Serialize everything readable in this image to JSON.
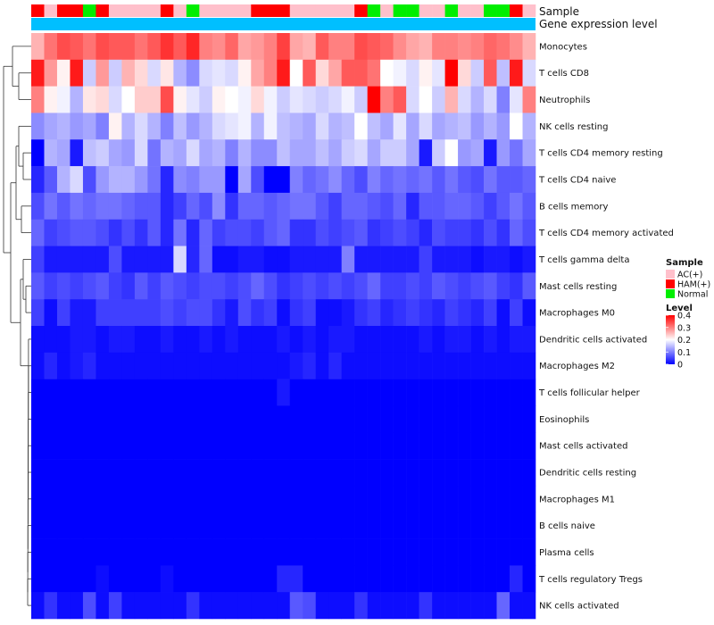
{
  "chart_data": {
    "type": "heatmap",
    "annotation_labels": {
      "sample": "Sample",
      "gene_expression": "Gene expression level"
    },
    "sample_groups": [
      "HAM(+)",
      "AC(+)",
      "HAM(+)",
      "HAM(+)",
      "Normal",
      "HAM(+)",
      "AC(+)",
      "AC(+)",
      "AC(+)",
      "AC(+)",
      "HAM(+)",
      "AC(+)",
      "Normal",
      "AC(+)",
      "AC(+)",
      "AC(+)",
      "AC(+)",
      "HAM(+)",
      "HAM(+)",
      "HAM(+)",
      "AC(+)",
      "AC(+)",
      "AC(+)",
      "AC(+)",
      "AC(+)",
      "HAM(+)",
      "Normal",
      "AC(+)",
      "Normal",
      "Normal",
      "AC(+)",
      "AC(+)",
      "Normal",
      "AC(+)",
      "AC(+)",
      "Normal",
      "Normal",
      "HAM(+)",
      "AC(+)"
    ],
    "rows": [
      "Monocytes",
      "T cells CD8",
      "Neutrophils",
      "NK cells resting",
      "T cells CD4 memory resting",
      "T cells CD4 naive",
      "B cells memory",
      "T cells CD4 memory activated",
      "T cells gamma delta",
      "Mast cells resting",
      "Macrophages M0",
      "Dendritic cells activated",
      "Macrophages M2",
      "T cells follicular helper",
      "Eosinophils",
      "Mast cells activated",
      "Dendritic cells resting",
      "Macrophages M1",
      "B cells naive",
      "Plasma cells",
      "T cells regulatory  Tregs",
      "NK cells activated"
    ],
    "color_scale": {
      "min": 0,
      "mid": 0.2,
      "max": 0.4,
      "low": "#0000ff",
      "mid_color": "#ffffff",
      "high": "#ff0000"
    },
    "values": [
      [
        0.26,
        0.31,
        0.34,
        0.33,
        0.31,
        0.34,
        0.33,
        0.33,
        0.31,
        0.33,
        0.36,
        0.33,
        0.37,
        0.3,
        0.29,
        0.32,
        0.27,
        0.28,
        0.3,
        0.35,
        0.27,
        0.26,
        0.33,
        0.3,
        0.3,
        0.34,
        0.33,
        0.32,
        0.29,
        0.27,
        0.26,
        0.3,
        0.3,
        0.29,
        0.3,
        0.32,
        0.31,
        0.29,
        0.26
      ],
      [
        0.38,
        0.28,
        0.21,
        0.38,
        0.16,
        0.28,
        0.16,
        0.26,
        0.23,
        0.17,
        0.22,
        0.14,
        0.11,
        0.17,
        0.18,
        0.17,
        0.21,
        0.27,
        0.3,
        0.38,
        0.2,
        0.33,
        0.23,
        0.27,
        0.33,
        0.33,
        0.31,
        0.2,
        0.19,
        0.17,
        0.21,
        0.18,
        0.4,
        0.23,
        0.16,
        0.33,
        0.15,
        0.38,
        0.17
      ],
      [
        0.3,
        0.21,
        0.19,
        0.14,
        0.22,
        0.23,
        0.17,
        0.2,
        0.24,
        0.24,
        0.34,
        0.21,
        0.18,
        0.16,
        0.21,
        0.2,
        0.19,
        0.23,
        0.19,
        0.16,
        0.18,
        0.17,
        0.16,
        0.17,
        0.19,
        0.16,
        0.4,
        0.3,
        0.33,
        0.17,
        0.2,
        0.16,
        0.26,
        0.17,
        0.14,
        0.17,
        0.1,
        0.18,
        0.3
      ],
      [
        0.11,
        0.13,
        0.14,
        0.12,
        0.13,
        0.1,
        0.21,
        0.14,
        0.17,
        0.14,
        0.1,
        0.15,
        0.12,
        0.14,
        0.17,
        0.18,
        0.19,
        0.14,
        0.19,
        0.15,
        0.14,
        0.13,
        0.17,
        0.14,
        0.15,
        0.2,
        0.15,
        0.13,
        0.18,
        0.13,
        0.17,
        0.13,
        0.14,
        0.15,
        0.12,
        0.14,
        0.12,
        0.2,
        0.14
      ],
      [
        0.0,
        0.14,
        0.13,
        0.02,
        0.15,
        0.16,
        0.13,
        0.12,
        0.17,
        0.09,
        0.14,
        0.13,
        0.17,
        0.13,
        0.14,
        0.1,
        0.14,
        0.11,
        0.11,
        0.15,
        0.13,
        0.13,
        0.15,
        0.13,
        0.16,
        0.17,
        0.13,
        0.16,
        0.16,
        0.13,
        0.02,
        0.16,
        0.2,
        0.12,
        0.13,
        0.02,
        0.12,
        0.09,
        0.13
      ],
      [
        0.03,
        0.07,
        0.14,
        0.17,
        0.06,
        0.12,
        0.14,
        0.14,
        0.12,
        0.09,
        0.03,
        0.11,
        0.1,
        0.12,
        0.12,
        0.0,
        0.13,
        0.06,
        0.0,
        0.0,
        0.1,
        0.08,
        0.09,
        0.11,
        0.08,
        0.06,
        0.1,
        0.08,
        0.09,
        0.08,
        0.09,
        0.07,
        0.09,
        0.07,
        0.06,
        0.09,
        0.07,
        0.07,
        0.08
      ],
      [
        0.06,
        0.09,
        0.07,
        0.09,
        0.08,
        0.09,
        0.09,
        0.08,
        0.07,
        0.07,
        0.03,
        0.05,
        0.08,
        0.06,
        0.11,
        0.04,
        0.08,
        0.08,
        0.07,
        0.08,
        0.09,
        0.09,
        0.07,
        0.05,
        0.08,
        0.08,
        0.07,
        0.06,
        0.08,
        0.03,
        0.07,
        0.07,
        0.08,
        0.08,
        0.07,
        0.05,
        0.07,
        0.09,
        0.07
      ],
      [
        0.08,
        0.05,
        0.06,
        0.07,
        0.07,
        0.06,
        0.04,
        0.06,
        0.04,
        0.07,
        0.03,
        0.09,
        0.03,
        0.08,
        0.05,
        0.06,
        0.06,
        0.05,
        0.07,
        0.08,
        0.04,
        0.04,
        0.06,
        0.05,
        0.06,
        0.07,
        0.04,
        0.05,
        0.06,
        0.05,
        0.03,
        0.06,
        0.05,
        0.05,
        0.04,
        0.06,
        0.04,
        0.08,
        0.06
      ],
      [
        0.05,
        0.02,
        0.02,
        0.02,
        0.02,
        0.02,
        0.06,
        0.02,
        0.02,
        0.02,
        0.02,
        0.17,
        0.03,
        0.08,
        0.01,
        0.01,
        0.02,
        0.02,
        0.01,
        0.01,
        0.02,
        0.02,
        0.02,
        0.02,
        0.1,
        0.02,
        0.02,
        0.02,
        0.02,
        0.02,
        0.05,
        0.02,
        0.02,
        0.02,
        0.01,
        0.02,
        0.02,
        0.01,
        0.02
      ],
      [
        0.07,
        0.05,
        0.06,
        0.05,
        0.06,
        0.07,
        0.05,
        0.04,
        0.07,
        0.05,
        0.07,
        0.06,
        0.05,
        0.06,
        0.06,
        0.05,
        0.06,
        0.08,
        0.06,
        0.04,
        0.05,
        0.06,
        0.05,
        0.06,
        0.05,
        0.06,
        0.08,
        0.05,
        0.05,
        0.06,
        0.05,
        0.07,
        0.06,
        0.05,
        0.06,
        0.07,
        0.05,
        0.04,
        0.07
      ],
      [
        0.05,
        0.01,
        0.05,
        0.02,
        0.02,
        0.05,
        0.05,
        0.05,
        0.05,
        0.05,
        0.06,
        0.05,
        0.06,
        0.06,
        0.04,
        0.02,
        0.06,
        0.04,
        0.05,
        0.01,
        0.04,
        0.05,
        0.01,
        0.01,
        0.02,
        0.04,
        0.05,
        0.03,
        0.04,
        0.05,
        0.04,
        0.03,
        0.05,
        0.04,
        0.03,
        0.05,
        0.01,
        0.05,
        0.01
      ],
      [
        0.01,
        0.01,
        0.01,
        0.02,
        0.02,
        0.01,
        0.02,
        0.02,
        0.01,
        0.01,
        0.02,
        0.01,
        0.01,
        0.02,
        0.01,
        0.02,
        0.01,
        0.01,
        0.01,
        0.02,
        0.01,
        0.02,
        0.01,
        0.02,
        0.02,
        0.01,
        0.01,
        0.01,
        0.01,
        0.01,
        0.02,
        0.01,
        0.02,
        0.02,
        0.01,
        0.02,
        0.01,
        0.02,
        0.02
      ],
      [
        0.01,
        0.03,
        0.01,
        0.02,
        0.03,
        0.01,
        0.01,
        0.01,
        0.01,
        0.01,
        0.01,
        0.01,
        0.01,
        0.01,
        0.01,
        0.01,
        0.01,
        0.01,
        0.01,
        0.01,
        0.02,
        0.03,
        0.01,
        0.03,
        0.01,
        0.01,
        0.01,
        0.01,
        0.01,
        0.01,
        0.01,
        0.01,
        0.01,
        0.01,
        0.01,
        0.01,
        0.01,
        0.01,
        0.01
      ],
      [
        0.0,
        0.0,
        0.0,
        0.0,
        0.0,
        0.0,
        0.0,
        0.0,
        0.0,
        0.0,
        0.0,
        0.0,
        0.0,
        0.0,
        0.0,
        0.0,
        0.0,
        0.0,
        0.0,
        0.02,
        0.0,
        0.0,
        0.0,
        0.0,
        0.0,
        0.0,
        0.0,
        0.0,
        0.0,
        0.0,
        0.0,
        0.0,
        0.0,
        0.0,
        0.0,
        0.0,
        0.0,
        0.0,
        0.0
      ],
      [
        0.0,
        0.0,
        0.0,
        0.0,
        0.0,
        0.0,
        0.0,
        0.0,
        0.0,
        0.0,
        0.0,
        0.0,
        0.0,
        0.0,
        0.0,
        0.0,
        0.0,
        0.0,
        0.0,
        0.0,
        0.0,
        0.0,
        0.0,
        0.0,
        0.0,
        0.0,
        0.0,
        0.0,
        0.0,
        0.0,
        0.0,
        0.0,
        0.0,
        0.0,
        0.0,
        0.0,
        0.0,
        0.0,
        0.0
      ],
      [
        0.0,
        0.0,
        0.0,
        0.0,
        0.0,
        0.0,
        0.0,
        0.0,
        0.0,
        0.0,
        0.0,
        0.0,
        0.0,
        0.0,
        0.0,
        0.0,
        0.0,
        0.0,
        0.0,
        0.0,
        0.0,
        0.0,
        0.0,
        0.0,
        0.0,
        0.0,
        0.0,
        0.0,
        0.0,
        0.0,
        0.0,
        0.0,
        0.0,
        0.0,
        0.0,
        0.0,
        0.0,
        0.0,
        0.0
      ],
      [
        0.0,
        0.0,
        0.0,
        0.0,
        0.0,
        0.0,
        0.0,
        0.0,
        0.0,
        0.0,
        0.0,
        0.0,
        0.0,
        0.0,
        0.0,
        0.0,
        0.0,
        0.0,
        0.0,
        0.0,
        0.0,
        0.0,
        0.0,
        0.0,
        0.0,
        0.0,
        0.0,
        0.0,
        0.0,
        0.0,
        0.0,
        0.0,
        0.0,
        0.0,
        0.0,
        0.0,
        0.0,
        0.0,
        0.0
      ],
      [
        0.0,
        0.0,
        0.0,
        0.0,
        0.0,
        0.0,
        0.0,
        0.0,
        0.0,
        0.0,
        0.0,
        0.0,
        0.0,
        0.0,
        0.0,
        0.0,
        0.0,
        0.0,
        0.0,
        0.0,
        0.0,
        0.0,
        0.0,
        0.0,
        0.0,
        0.0,
        0.0,
        0.0,
        0.0,
        0.0,
        0.0,
        0.0,
        0.0,
        0.0,
        0.0,
        0.0,
        0.0,
        0.0,
        0.0
      ],
      [
        0.0,
        0.0,
        0.0,
        0.0,
        0.0,
        0.0,
        0.0,
        0.0,
        0.0,
        0.0,
        0.0,
        0.0,
        0.0,
        0.0,
        0.0,
        0.0,
        0.0,
        0.0,
        0.0,
        0.0,
        0.0,
        0.0,
        0.0,
        0.0,
        0.0,
        0.0,
        0.0,
        0.0,
        0.0,
        0.0,
        0.0,
        0.0,
        0.0,
        0.0,
        0.0,
        0.0,
        0.0,
        0.0,
        0.0
      ],
      [
        0.0,
        0.0,
        0.0,
        0.0,
        0.0,
        0.0,
        0.0,
        0.0,
        0.0,
        0.0,
        0.0,
        0.0,
        0.0,
        0.0,
        0.0,
        0.0,
        0.0,
        0.0,
        0.0,
        0.0,
        0.0,
        0.0,
        0.0,
        0.0,
        0.0,
        0.0,
        0.0,
        0.0,
        0.0,
        0.0,
        0.0,
        0.0,
        0.0,
        0.0,
        0.0,
        0.0,
        0.0,
        0.0,
        0.0
      ],
      [
        0.0,
        0.0,
        0.0,
        0.0,
        0.0,
        0.01,
        0.0,
        0.0,
        0.0,
        0.0,
        0.01,
        0.0,
        0.0,
        0.0,
        0.0,
        0.0,
        0.0,
        0.0,
        0.0,
        0.03,
        0.03,
        0.0,
        0.0,
        0.0,
        0.0,
        0.0,
        0.0,
        0.0,
        0.0,
        0.0,
        0.0,
        0.0,
        0.0,
        0.0,
        0.0,
        0.0,
        0.0,
        0.03,
        0.0
      ],
      [
        0.01,
        0.04,
        0.01,
        0.01,
        0.06,
        0.01,
        0.05,
        0.01,
        0.01,
        0.01,
        0.01,
        0.01,
        0.04,
        0.01,
        0.01,
        0.01,
        0.01,
        0.01,
        0.01,
        0.01,
        0.07,
        0.06,
        0.01,
        0.01,
        0.01,
        0.04,
        0.01,
        0.01,
        0.01,
        0.01,
        0.04,
        0.01,
        0.01,
        0.01,
        0.01,
        0.01,
        0.08,
        0.01,
        0.01
      ]
    ],
    "legend": {
      "sample_title": "Sample",
      "sample_entries": [
        {
          "label": "AC(+)",
          "color": "#ffc0cb"
        },
        {
          "label": "HAM(+)",
          "color": "#ff0000"
        },
        {
          "label": "Normal",
          "color": "#00ee00"
        }
      ],
      "level_title": "Level",
      "level_ticks": [
        "0.4",
        "0.3",
        "0.2",
        "0.1",
        "0"
      ],
      "level_tick_values": [
        0.4,
        0.3,
        0.2,
        0.1,
        0
      ]
    },
    "annotation_bar_color": "#00bfff"
  }
}
